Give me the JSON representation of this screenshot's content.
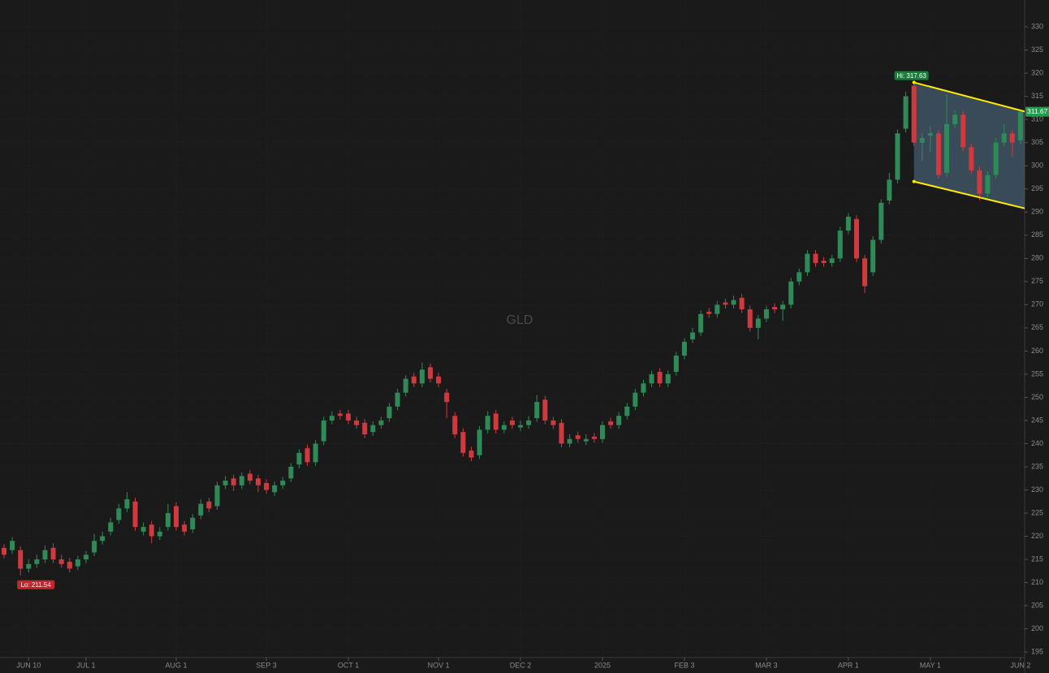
{
  "chart_data": {
    "type": "candlestick",
    "watermark": "GLD",
    "categories": [
      null,
      null,
      null,
      "JUN 10",
      null,
      null,
      null,
      null,
      null,
      null,
      "JUL 1",
      null,
      null,
      null,
      null,
      null,
      null,
      null,
      null,
      null,
      null,
      "AUG 1",
      null,
      null,
      null,
      null,
      null,
      null,
      null,
      null,
      null,
      null,
      "SEP 3",
      null,
      null,
      null,
      null,
      null,
      null,
      null,
      null,
      null,
      "OCT 1",
      null,
      null,
      null,
      null,
      null,
      null,
      null,
      null,
      null,
      null,
      "NOV 1",
      null,
      null,
      null,
      null,
      null,
      null,
      null,
      null,
      null,
      "DEC 2",
      null,
      null,
      null,
      null,
      null,
      null,
      null,
      null,
      null,
      "2025",
      null,
      null,
      null,
      null,
      null,
      null,
      null,
      null,
      null,
      "FEB 3",
      null,
      null,
      null,
      null,
      null,
      null,
      null,
      null,
      null,
      "MAR 3",
      null,
      null,
      null,
      null,
      null,
      null,
      null,
      null,
      null,
      "APR 1",
      null,
      null,
      null,
      null,
      null,
      null,
      null,
      null,
      null,
      "MAY 1",
      null,
      null,
      null,
      null,
      null,
      null,
      null,
      null,
      null,
      null,
      "JUN 2"
    ],
    "open": [
      217.5,
      217,
      217,
      213,
      214,
      215,
      217.5,
      215,
      214.5,
      213.5,
      215,
      216.5,
      219,
      221,
      223.5,
      226,
      227.5,
      221,
      222.5,
      220,
      222,
      226.5,
      222.5,
      221.5,
      224.5,
      227.5,
      226.5,
      231,
      232.5,
      231,
      233.5,
      232.5,
      231.5,
      229.5,
      231,
      232.5,
      235.5,
      239,
      236,
      240.5,
      245,
      246.5,
      246.5,
      245,
      244.5,
      242.5,
      244,
      245.5,
      248,
      251,
      254.5,
      253,
      256.5,
      254.5,
      251,
      246,
      242.5,
      238.5,
      237.5,
      243,
      246.5,
      243,
      245,
      243.5,
      244,
      245.5,
      249.5,
      245,
      244.5,
      240,
      241.8,
      240.5,
      241.5,
      241,
      244.8,
      244,
      246,
      248,
      251,
      253,
      255.5,
      253,
      255.5,
      259,
      262.5,
      264,
      268.5,
      268,
      270.5,
      270,
      271.5,
      269,
      265,
      267,
      269.5,
      269,
      270,
      275,
      277,
      281,
      279.5,
      279,
      280,
      286,
      288.5,
      280,
      277,
      284,
      292.5,
      297,
      308,
      317.3,
      305,
      306.5,
      307,
      298.5,
      309,
      311,
      304,
      299,
      294,
      298,
      305,
      307,
      305.5
    ],
    "high": [
      218.3,
      219.8,
      217.8,
      215,
      216,
      218,
      218.5,
      216,
      215.3,
      215.8,
      216.8,
      220.5,
      221,
      224,
      227,
      229.5,
      228.3,
      223,
      223.3,
      222,
      227,
      227.3,
      223.3,
      224.8,
      228,
      228.3,
      231.8,
      233,
      233.3,
      233.8,
      234.3,
      233.3,
      232.3,
      231.8,
      232.8,
      235.8,
      238.8,
      239.8,
      240.8,
      245.8,
      247,
      247.3,
      247.3,
      245.8,
      245.3,
      244.8,
      245.8,
      248.8,
      251.8,
      254.8,
      255.3,
      257.5,
      257.3,
      255.3,
      251.8,
      246.8,
      243.3,
      239.3,
      243.8,
      247,
      247.3,
      244.8,
      245.8,
      245,
      246,
      250.5,
      250.3,
      245.8,
      245.3,
      242,
      242.6,
      242,
      242.3,
      244.8,
      245.6,
      246.8,
      248.8,
      251.8,
      253.8,
      255.8,
      256.3,
      255.8,
      259.8,
      262.8,
      265,
      268.8,
      269.3,
      270.8,
      271.3,
      272,
      272.3,
      269.8,
      267.8,
      269.8,
      270.3,
      270.8,
      275.8,
      277.8,
      281.8,
      281.8,
      280.3,
      280.8,
      286.8,
      289.8,
      289.3,
      280.8,
      284.8,
      292.8,
      298.5,
      307.8,
      316,
      317.63,
      307,
      308.5,
      307.8,
      315.5,
      312,
      311.8,
      304.8,
      299.8,
      298.8,
      306,
      309,
      307.8,
      312.2
    ],
    "low": [
      215.2,
      216.2,
      211.54,
      212.2,
      213.2,
      214.2,
      214.2,
      213.2,
      212.2,
      212.7,
      214.2,
      215.7,
      218.2,
      220.2,
      222.7,
      225.2,
      221.2,
      220.2,
      218.5,
      219.2,
      221.2,
      221.2,
      220.2,
      220.7,
      223.7,
      225.2,
      225.7,
      230.2,
      229.8,
      230.2,
      231.2,
      229.5,
      229.2,
      228.7,
      230.2,
      231.7,
      234.7,
      235.2,
      235.2,
      239.7,
      244.2,
      245.2,
      244.2,
      243.2,
      241.2,
      241.7,
      243.2,
      244.7,
      247.2,
      250.2,
      252.2,
      252.2,
      253.2,
      252.2,
      245.5,
      241.2,
      237.2,
      236.2,
      236.7,
      242.2,
      242.2,
      242.2,
      243.2,
      242.7,
      243.2,
      244.7,
      244.2,
      243.2,
      239.2,
      239.2,
      240.2,
      239.7,
      240.2,
      240.2,
      243.2,
      243.2,
      245.2,
      247.2,
      250.2,
      252.2,
      252.2,
      252.2,
      254.7,
      258.2,
      261.7,
      263.2,
      267.2,
      267.2,
      269.2,
      269.2,
      268.2,
      264.2,
      262.5,
      266.2,
      268.2,
      266.5,
      269.2,
      274.2,
      276.2,
      278.2,
      278.2,
      278.2,
      279.2,
      285.2,
      279.2,
      272.5,
      276.2,
      283.2,
      291.7,
      296.2,
      307.2,
      304.2,
      301,
      303,
      297.2,
      297.7,
      308.2,
      303.2,
      298.2,
      292.5,
      293.2,
      297.2,
      304.2,
      302,
      304.7
    ],
    "close": [
      216,
      219,
      213,
      214,
      215,
      217,
      215,
      214,
      213,
      215,
      216,
      219,
      220,
      223,
      226,
      228,
      222,
      222,
      220,
      221,
      225,
      222,
      221,
      224,
      227,
      226,
      231,
      232,
      231,
      233,
      232,
      231,
      230,
      231,
      232,
      235,
      238,
      236,
      240,
      245,
      246,
      246,
      245,
      244,
      242,
      244,
      245,
      248,
      251,
      254,
      253,
      256,
      254,
      253,
      249,
      242,
      238,
      237,
      243,
      246,
      243,
      244,
      244,
      244,
      245,
      249,
      245,
      244,
      240,
      241,
      241,
      241,
      241,
      244,
      244,
      246,
      248,
      251,
      253,
      255,
      253,
      255,
      259,
      262,
      264,
      268,
      268,
      270,
      270,
      271,
      269,
      265,
      267,
      269,
      269,
      270,
      275,
      277,
      281,
      279,
      279,
      280,
      286,
      289,
      280,
      274,
      284,
      292,
      297,
      307,
      315,
      305,
      306,
      307,
      298,
      309,
      311,
      304,
      299,
      294,
      298,
      305,
      307,
      305,
      311.67
    ],
    "up_color": "#2e8b57",
    "down_color": "#d0393e",
    "ylim": [
      193.8,
      335.8
    ],
    "yticks": [
      195,
      200,
      205,
      210,
      215,
      220,
      225,
      230,
      235,
      240,
      245,
      250,
      255,
      260,
      265,
      270,
      275,
      280,
      285,
      290,
      295,
      300,
      305,
      310,
      315,
      320,
      325,
      330
    ],
    "grid": true,
    "hi_label": {
      "text": "Hi: 317.63",
      "index": 111,
      "value": 317.63
    },
    "lo_label": {
      "text": "Lo: 211.54",
      "index": 2,
      "value": 211.54
    },
    "last_price": 311.67,
    "channel": {
      "x": [
        111,
        125
      ],
      "upper": [
        318,
        311.5
      ],
      "lower": [
        296.6,
        290.6
      ],
      "color": "#ffeb00"
    }
  }
}
